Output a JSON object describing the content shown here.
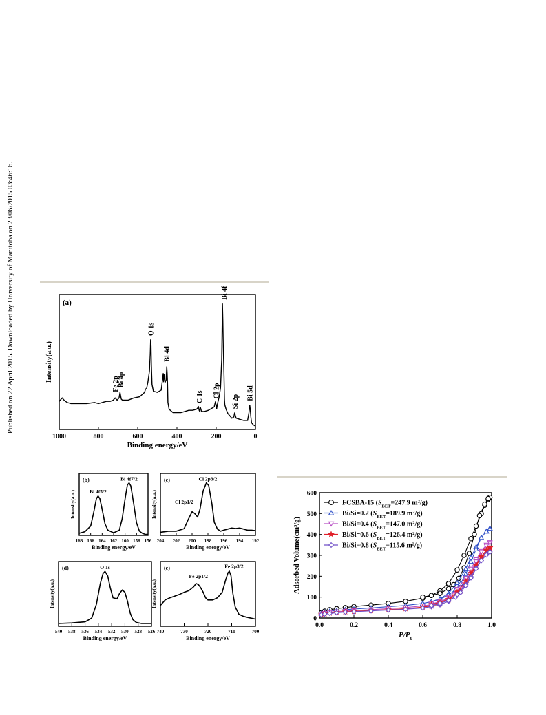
{
  "side_note": "Published on 22 April 2015. Downloaded by University of Manitoba on 23/06/2015 03:46:16.",
  "colors": {
    "rule": "#d8d4c8",
    "black": "#000000",
    "blue": "#2f50c8",
    "magenta": "#b84fc4",
    "red": "#e0202a",
    "purple": "#7050c8"
  },
  "chart_data": [
    {
      "id": "a",
      "type": "line",
      "panel_label": "(a)",
      "xlabel": "Binding energy/eV",
      "ylabel": "Intensity(a.u.)",
      "xlim": [
        1000,
        0
      ],
      "x_ticks": [
        "1000",
        "800",
        "600",
        "400",
        "200",
        "0"
      ],
      "series": [
        {
          "x": [
            1000,
            985,
            975,
            960,
            940,
            900,
            860,
            820,
            800,
            780,
            760,
            740,
            725,
            715,
            705,
            695,
            690,
            684,
            678,
            670,
            650,
            620,
            590,
            565,
            560,
            555,
            548,
            540,
            536,
            534,
            532,
            530,
            527,
            520,
            500,
            480,
            470,
            468,
            466,
            460,
            455,
            452,
            450,
            448,
            446,
            440,
            420,
            400,
            380,
            360,
            340,
            320,
            300,
            290,
            287,
            284,
            281,
            278,
            275,
            260,
            240,
            210,
            205,
            200,
            198,
            196,
            192,
            185,
            178,
            172,
            168,
            166,
            164,
            162,
            160,
            158,
            156,
            150,
            140,
            120,
            110,
            106,
            102,
            98,
            80,
            60,
            40,
            33,
            29,
            26,
            24,
            20,
            10,
            0
          ],
          "y": [
            0.13,
            0.16,
            0.14,
            0.12,
            0.11,
            0.11,
            0.11,
            0.12,
            0.11,
            0.12,
            0.13,
            0.13,
            0.14,
            0.16,
            0.14,
            0.16,
            0.21,
            0.15,
            0.14,
            0.14,
            0.14,
            0.16,
            0.17,
            0.21,
            0.24,
            0.24,
            0.3,
            0.4,
            0.55,
            0.68,
            0.62,
            0.45,
            0.28,
            0.22,
            0.21,
            0.23,
            0.38,
            0.3,
            0.37,
            0.3,
            0.32,
            0.44,
            0.38,
            0.3,
            0.12,
            0.06,
            0.03,
            0.03,
            0.03,
            0.04,
            0.05,
            0.05,
            0.06,
            0.08,
            0.05,
            0.04,
            0.08,
            0.06,
            0.04,
            0.04,
            0.05,
            0.08,
            0.12,
            0.1,
            0.06,
            0.08,
            0.12,
            0.17,
            0.25,
            0.5,
            1.0,
            0.85,
            0.62,
            0.5,
            0.35,
            0.15,
            0.1,
            0.06,
            0.02,
            -0.02,
            -0.01,
            0.03,
            0.0,
            -0.02,
            -0.03,
            -0.04,
            -0.04,
            0.03,
            0.1,
            0.05,
            0.0,
            -0.06,
            -0.08,
            -0.09
          ]
        }
      ],
      "annotations": [
        {
          "text": "Fe 2p",
          "x": 712,
          "y": 0.2
        },
        {
          "text": "Bi 4p",
          "x": 684,
          "y": 0.24
        },
        {
          "text": "O 1s",
          "x": 532,
          "y": 0.7
        },
        {
          "text": "Bi 4d",
          "x": 450,
          "y": 0.47
        },
        {
          "text": "C 1s",
          "x": 285,
          "y": 0.1
        },
        {
          "text": "Cl 2p",
          "x": 199,
          "y": 0.14
        },
        {
          "text": "Si 2p",
          "x": 102,
          "y": 0.05
        },
        {
          "text": "Bi 5d",
          "x": 26,
          "y": 0.12
        },
        {
          "text": "Bi 4f",
          "x": 158,
          "y": 1.02
        }
      ]
    },
    {
      "id": "b",
      "type": "line",
      "panel_label": "(b)",
      "xlabel": "Binding energy/eV",
      "ylabel": "Intensity(a.u.)",
      "xlim": [
        168,
        156
      ],
      "x_ticks": [
        "168",
        "166",
        "164",
        "162",
        "160",
        "158",
        "156"
      ],
      "series": [
        {
          "x": [
            168,
            167,
            166,
            165.5,
            165,
            164.7,
            164.4,
            164,
            163.5,
            163,
            162,
            161,
            160.5,
            160,
            159.6,
            159.3,
            159,
            158.5,
            158,
            157.5,
            157,
            156.5,
            156
          ],
          "y": [
            0.04,
            0.07,
            0.18,
            0.42,
            0.7,
            0.75,
            0.7,
            0.5,
            0.22,
            0.1,
            0.05,
            0.1,
            0.32,
            0.7,
            0.96,
            1.0,
            0.94,
            0.6,
            0.24,
            0.08,
            0.04,
            0.02,
            0.02
          ]
        }
      ],
      "annotations": [
        {
          "text": "Bi 4f5/2",
          "x": 164.7,
          "y": 0.8
        },
        {
          "text": "Bi 4f7/2",
          "x": 159.3,
          "y": 1.04
        }
      ]
    },
    {
      "id": "c",
      "type": "line",
      "panel_label": "(c)",
      "xlabel": "Binding energy/eV",
      "ylabel": "Intensity(a.u.)",
      "xlim": [
        204,
        192
      ],
      "x_ticks": [
        "204",
        "202",
        "200",
        "198",
        "196",
        "194",
        "192"
      ],
      "series": [
        {
          "x": [
            204,
            203,
            202,
            201,
            200.5,
            200,
            199.7,
            199.3,
            199,
            198.6,
            198.2,
            197.9,
            197.5,
            197.2,
            196.8,
            196.4,
            196,
            195.5,
            195,
            194.5,
            194,
            193.5,
            193,
            192.5,
            192
          ],
          "y": [
            0.06,
            0.08,
            0.08,
            0.13,
            0.3,
            0.45,
            0.42,
            0.35,
            0.5,
            0.85,
            1.0,
            0.95,
            0.6,
            0.25,
            0.12,
            0.08,
            0.1,
            0.12,
            0.14,
            0.13,
            0.14,
            0.12,
            0.1,
            0.1,
            0.09
          ]
        }
      ],
      "annotations": [
        {
          "text": "Cl 2p1/2",
          "x": 201,
          "y": 0.6
        },
        {
          "text": "Cl 2p3/2",
          "x": 198,
          "y": 1.04
        }
      ]
    },
    {
      "id": "d",
      "type": "line",
      "panel_label": "(d)",
      "xlabel": "Binding energy/eV",
      "ylabel": "Intensity(a.u.)",
      "xlim": [
        540,
        526
      ],
      "x_ticks": [
        "540",
        "538",
        "536",
        "534",
        "532",
        "530",
        "528",
        "526"
      ],
      "series": [
        {
          "x": [
            540,
            538,
            536,
            535,
            534.3,
            533.7,
            533.3,
            533,
            532.6,
            532.2,
            531.8,
            531.2,
            530.8,
            530.4,
            530,
            529.6,
            529.2,
            528.8,
            528.3,
            527.5,
            527,
            526
          ],
          "y": [
            0.05,
            0.06,
            0.08,
            0.15,
            0.4,
            0.78,
            0.96,
            1.0,
            0.92,
            0.7,
            0.52,
            0.5,
            0.6,
            0.66,
            0.62,
            0.45,
            0.24,
            0.12,
            0.07,
            0.05,
            0.05,
            0.05
          ]
        }
      ],
      "annotations": [
        {
          "text": "O 1s",
          "x": 533,
          "y": 1.04
        }
      ]
    },
    {
      "id": "e",
      "type": "line",
      "panel_label": "(e)",
      "xlabel": "Binding energy/eV",
      "ylabel": "Intensity(a.u.)",
      "xlim": [
        740,
        700
      ],
      "x_ticks": [
        "740",
        "730",
        "720",
        "710",
        "700"
      ],
      "series": [
        {
          "x": [
            740,
            738,
            736,
            734,
            732,
            730,
            728,
            726,
            725,
            724,
            723,
            722,
            721,
            720,
            718,
            716,
            714,
            712.5,
            711.5,
            711,
            710.3,
            709.5,
            708.5,
            707,
            705,
            703,
            701,
            700
          ],
          "y": [
            0.38,
            0.48,
            0.52,
            0.55,
            0.58,
            0.62,
            0.65,
            0.72,
            0.78,
            0.76,
            0.7,
            0.62,
            0.52,
            0.48,
            0.48,
            0.52,
            0.62,
            0.85,
            0.98,
            1.0,
            0.92,
            0.6,
            0.35,
            0.22,
            0.18,
            0.16,
            0.14,
            0.13
          ]
        }
      ],
      "annotations": [
        {
          "text": "Fe 2p1/2",
          "x": 724,
          "y": 0.88
        },
        {
          "text": "Fe 2p3/2",
          "x": 709,
          "y": 1.06
        }
      ]
    },
    {
      "id": "f",
      "type": "line",
      "xlabel": "P/P",
      "xlabel_sub": "0",
      "ylabel": "Adsorbed Volume(cm³/g)",
      "xlim": [
        0.0,
        1.0
      ],
      "ylim": [
        0,
        600
      ],
      "x_ticks": [
        "0.0",
        "0.2",
        "0.4",
        "0.6",
        "0.8",
        "1.0"
      ],
      "y_ticks": [
        "0",
        "100",
        "200",
        "300",
        "400",
        "500",
        "600"
      ],
      "legend_position": "top-left",
      "series": [
        {
          "name": "FCSBA-15 (SBET=247.9 m²/g)",
          "legend": {
            "pre": "FCSBA-15 (",
            "it": "S",
            "sub": "BET",
            "post": "=247.9 m",
            "sup": "2",
            "tail": "/g)"
          },
          "color": "#000000",
          "marker": "circle",
          "x": [
            0.01,
            0.03,
            0.06,
            0.1,
            0.15,
            0.2,
            0.3,
            0.4,
            0.5,
            0.6,
            0.65,
            0.7,
            0.75,
            0.8,
            0.84,
            0.88,
            0.91,
            0.94,
            0.96,
            0.98,
            0.99,
            0.99,
            0.98,
            0.96,
            0.93,
            0.9,
            0.87,
            0.84,
            0.81,
            0.78,
            0.75,
            0.7,
            0.65,
            0.6
          ],
          "y": [
            25,
            33,
            40,
            45,
            50,
            55,
            62,
            70,
            80,
            95,
            108,
            130,
            165,
            230,
            300,
            380,
            440,
            500,
            540,
            568,
            578,
            578,
            572,
            545,
            490,
            400,
            310,
            240,
            190,
            160,
            140,
            118,
            108,
            100
          ]
        },
        {
          "name": "Bi/Si=0.2 (SBET=189.9 m²/g)",
          "legend": {
            "pre": "Bi/Si=0.2 (",
            "it": "S",
            "sub": "BET",
            "post": "=189.9 m",
            "sup": "2",
            "tail": "/g)"
          },
          "color": "#2f50c8",
          "marker": "triangle",
          "x": [
            0.01,
            0.03,
            0.06,
            0.1,
            0.15,
            0.2,
            0.3,
            0.4,
            0.5,
            0.6,
            0.65,
            0.7,
            0.75,
            0.8,
            0.85,
            0.88,
            0.91,
            0.94,
            0.97,
            0.99,
            0.99,
            0.97,
            0.94,
            0.91,
            0.88,
            0.85,
            0.82,
            0.79,
            0.75,
            0.7,
            0.65,
            0.6
          ],
          "y": [
            22,
            28,
            33,
            36,
            40,
            43,
            48,
            54,
            60,
            70,
            78,
            92,
            118,
            168,
            235,
            290,
            340,
            385,
            415,
            430,
            428,
            415,
            385,
            330,
            270,
            210,
            165,
            135,
            110,
            90,
            78,
            70
          ]
        },
        {
          "name": "Bi/Si=0.4 (SBET=147.0 m²/g)",
          "legend": {
            "pre": "Bi/Si=0.4 (",
            "it": "S",
            "sub": "BET",
            "post": "=147.0 m",
            "sup": "2",
            "tail": "/g)"
          },
          "color": "#b84fc4",
          "marker": "triangle-down",
          "x": [
            0.01,
            0.03,
            0.06,
            0.1,
            0.15,
            0.2,
            0.3,
            0.4,
            0.5,
            0.6,
            0.65,
            0.7,
            0.75,
            0.8,
            0.85,
            0.88,
            0.91,
            0.94,
            0.97,
            0.99,
            0.99,
            0.97,
            0.94,
            0.91,
            0.88,
            0.85,
            0.82,
            0.79,
            0.75,
            0.7,
            0.65
          ],
          "y": [
            18,
            23,
            27,
            30,
            33,
            36,
            40,
            45,
            50,
            58,
            64,
            76,
            98,
            138,
            190,
            235,
            280,
            320,
            350,
            362,
            360,
            345,
            315,
            270,
            220,
            175,
            140,
            115,
            95,
            78,
            68
          ]
        },
        {
          "name": "Bi/Si=0.6 (SBET=126.4 m²/g)",
          "legend": {
            "pre": "Bi/Si=0.6 (",
            "it": "S",
            "sub": "BET",
            "post": "=126.4 m",
            "sup": "2",
            "tail": "/g)"
          },
          "color": "#e0202a",
          "marker": "star",
          "x": [
            0.01,
            0.03,
            0.06,
            0.1,
            0.15,
            0.2,
            0.3,
            0.4,
            0.5,
            0.6,
            0.65,
            0.7,
            0.75,
            0.8,
            0.85,
            0.88,
            0.91,
            0.94,
            0.97,
            0.99,
            0.99,
            0.97,
            0.94,
            0.91,
            0.88,
            0.85,
            0.82,
            0.79,
            0.75,
            0.7,
            0.65
          ],
          "y": [
            16,
            20,
            24,
            27,
            30,
            32,
            36,
            40,
            45,
            52,
            58,
            68,
            88,
            125,
            175,
            215,
            255,
            295,
            325,
            338,
            336,
            322,
            292,
            250,
            205,
            165,
            130,
            108,
            90,
            75,
            65
          ]
        },
        {
          "name": "Bi/Si=0.8 (SBET=115.6 m²/g)",
          "legend": {
            "pre": "Bi/Si=0.8 (",
            "it": "S",
            "sub": "BET",
            "post": "=115.6 m",
            "sup": "2",
            "tail": "/g)"
          },
          "color": "#7050c8",
          "marker": "diamond",
          "x": [
            0.01,
            0.03,
            0.06,
            0.1,
            0.15,
            0.2,
            0.3,
            0.4,
            0.5,
            0.6,
            0.65,
            0.7,
            0.75,
            0.8,
            0.85,
            0.88,
            0.91,
            0.94,
            0.97,
            0.99,
            0.99,
            0.97,
            0.94,
            0.91,
            0.88,
            0.85,
            0.82,
            0.79,
            0.75,
            0.7,
            0.65
          ],
          "y": [
            15,
            19,
            22,
            25,
            28,
            30,
            34,
            38,
            42,
            48,
            54,
            63,
            80,
            112,
            160,
            198,
            238,
            275,
            305,
            318,
            316,
            302,
            275,
            236,
            192,
            155,
            122,
            100,
            84,
            70,
            60
          ]
        }
      ]
    }
  ]
}
